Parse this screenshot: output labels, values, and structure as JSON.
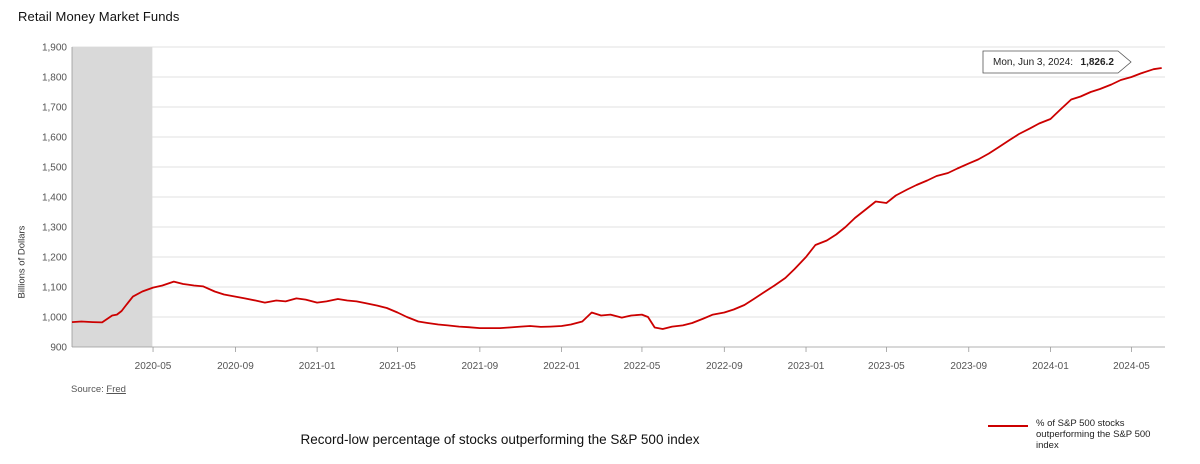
{
  "title": "Retail Money Market Funds",
  "source_prefix": "Source:",
  "source_link": "Fred",
  "caption": "Record-low percentage of stocks outperforming the S&P 500 index",
  "colors": {
    "line": "#cc0000",
    "recession": "#d9d9d9",
    "grid": "#d9d9d9",
    "axis": "#999999"
  },
  "chart_data": {
    "type": "line",
    "title": "Retail Money Market Funds",
    "ylabel": "Billions of Dollars",
    "xlabel": "",
    "ylim": [
      900,
      1900
    ],
    "yticks": [
      900,
      1000,
      1100,
      1200,
      1300,
      1400,
      1500,
      1600,
      1700,
      1800,
      1900
    ],
    "ytick_labels": [
      "900",
      "1,000",
      "1,100",
      "1,200",
      "1,300",
      "1,400",
      "1,500",
      "1,600",
      "1,700",
      "1,800",
      "1,900"
    ],
    "xlim": [
      "2020-01-01",
      "2024-06-20"
    ],
    "xticks": [
      "2020-05-01",
      "2020-09-01",
      "2021-01-01",
      "2021-05-01",
      "2021-09-01",
      "2022-01-01",
      "2022-05-01",
      "2022-09-01",
      "2023-01-01",
      "2023-05-01",
      "2023-09-01",
      "2024-01-01",
      "2024-05-01"
    ],
    "xtick_labels": [
      "2020-05",
      "2020-09",
      "2021-01",
      "2021-05",
      "2021-09",
      "2022-01",
      "2022-05",
      "2022-09",
      "2023-01",
      "2023-05",
      "2023-09",
      "2024-01",
      "2024-05"
    ],
    "grid": true,
    "legend_position": "bottom-right",
    "shaded_period": [
      "2020-01-01",
      "2020-04-30"
    ],
    "tooltip": {
      "date": "Mon, Jun 3, 2024:",
      "value": "1,826.2"
    },
    "series": [
      {
        "name": "% of S&P 500 stocks outperforming the S&P 500 index",
        "x": [
          "2020-01-01",
          "2020-01-15",
          "2020-02-01",
          "2020-02-15",
          "2020-03-01",
          "2020-03-08",
          "2020-03-15",
          "2020-03-22",
          "2020-04-01",
          "2020-04-15",
          "2020-05-01",
          "2020-05-15",
          "2020-06-01",
          "2020-06-15",
          "2020-06-22",
          "2020-07-01",
          "2020-07-15",
          "2020-08-01",
          "2020-08-15",
          "2020-09-01",
          "2020-09-15",
          "2020-10-01",
          "2020-10-15",
          "2020-11-01",
          "2020-11-15",
          "2020-12-01",
          "2020-12-15",
          "2021-01-01",
          "2021-01-15",
          "2021-02-01",
          "2021-02-15",
          "2021-03-01",
          "2021-03-15",
          "2021-04-01",
          "2021-04-15",
          "2021-05-01",
          "2021-05-15",
          "2021-06-01",
          "2021-06-15",
          "2021-07-01",
          "2021-07-15",
          "2021-08-01",
          "2021-08-15",
          "2021-09-01",
          "2021-09-15",
          "2021-10-01",
          "2021-10-15",
          "2021-11-01",
          "2021-11-15",
          "2021-12-01",
          "2021-12-15",
          "2022-01-01",
          "2022-01-15",
          "2022-02-01",
          "2022-02-15",
          "2022-03-01",
          "2022-03-15",
          "2022-04-01",
          "2022-04-15",
          "2022-05-01",
          "2022-05-10",
          "2022-05-20",
          "2022-06-01",
          "2022-06-15",
          "2022-07-01",
          "2022-07-15",
          "2022-08-01",
          "2022-08-15",
          "2022-09-01",
          "2022-09-15",
          "2022-10-01",
          "2022-10-15",
          "2022-11-01",
          "2022-11-15",
          "2022-12-01",
          "2022-12-15",
          "2023-01-01",
          "2023-01-15",
          "2023-02-01",
          "2023-02-15",
          "2023-03-01",
          "2023-03-15",
          "2023-04-01",
          "2023-04-15",
          "2023-05-01",
          "2023-05-15",
          "2023-06-01",
          "2023-06-15",
          "2023-07-01",
          "2023-07-15",
          "2023-08-01",
          "2023-08-15",
          "2023-09-01",
          "2023-09-15",
          "2023-10-01",
          "2023-10-15",
          "2023-11-01",
          "2023-11-15",
          "2023-12-01",
          "2023-12-15",
          "2024-01-01",
          "2024-01-15",
          "2024-02-01",
          "2024-02-15",
          "2024-03-01",
          "2024-03-15",
          "2024-04-01",
          "2024-04-15",
          "2024-05-01",
          "2024-05-15",
          "2024-06-03",
          "2024-06-15"
        ],
        "values": [
          983,
          985,
          983,
          982,
          1005,
          1008,
          1020,
          1040,
          1068,
          1085,
          1098,
          1105,
          1118,
          1110,
          1108,
          1105,
          1102,
          1085,
          1075,
          1068,
          1062,
          1055,
          1048,
          1055,
          1052,
          1062,
          1058,
          1048,
          1052,
          1060,
          1055,
          1052,
          1046,
          1038,
          1030,
          1015,
          1000,
          985,
          980,
          975,
          972,
          968,
          966,
          963,
          963,
          963,
          965,
          968,
          970,
          967,
          968,
          970,
          975,
          985,
          1015,
          1005,
          1008,
          998,
          1005,
          1008,
          1000,
          965,
          960,
          968,
          972,
          980,
          995,
          1008,
          1015,
          1025,
          1040,
          1060,
          1085,
          1105,
          1130,
          1160,
          1200,
          1240,
          1255,
          1275,
          1300,
          1330,
          1360,
          1385,
          1380,
          1405,
          1425,
          1440,
          1455,
          1470,
          1480,
          1495,
          1512,
          1525,
          1545,
          1565,
          1590,
          1610,
          1628,
          1645,
          1660,
          1690,
          1725,
          1735,
          1750,
          1760,
          1775,
          1790,
          1800,
          1812,
          1826,
          1830
        ]
      }
    ]
  }
}
